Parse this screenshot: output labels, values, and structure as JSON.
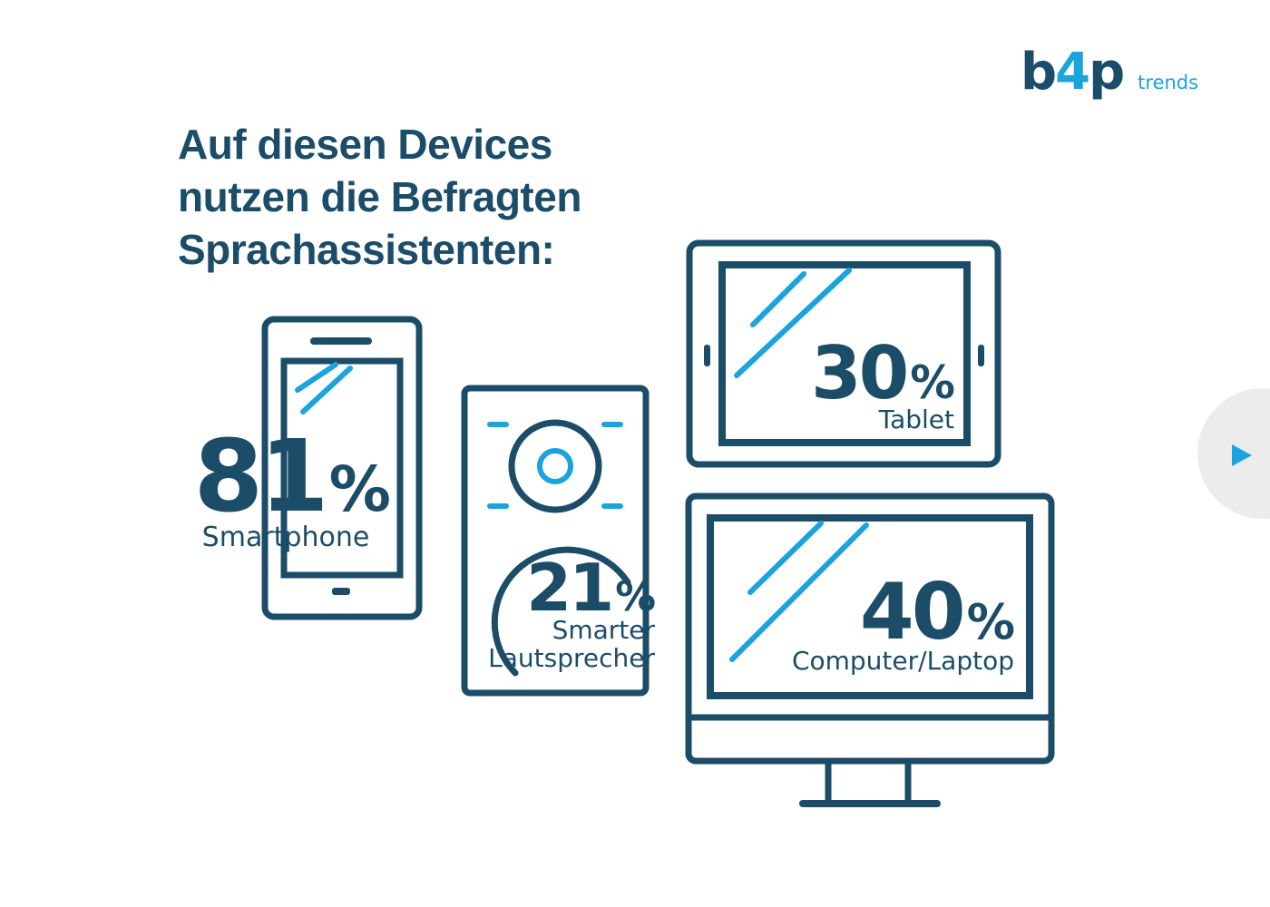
{
  "logo": {
    "text_main": "b",
    "text_four": "4",
    "text_p": "p",
    "text_sub": "trends"
  },
  "title_lines": [
    "Auf diesen Devices",
    "nutzen die Befragten",
    "Sprachassistenten:"
  ],
  "colors": {
    "dark": "#1b4c68",
    "accent": "#1aa3dd",
    "nav_bg": "#ececec"
  },
  "chart_data": {
    "type": "infographic",
    "unit": "%",
    "items": [
      {
        "label": "Smartphone",
        "value": 81,
        "value_text": "81",
        "icon": "smartphone-icon"
      },
      {
        "label": "Smarter Lautsprecher",
        "label_lines": [
          "Smarter",
          "Lautsprecher"
        ],
        "value": 21,
        "value_text": "21",
        "icon": "smart-speaker-icon"
      },
      {
        "label": "Tablet",
        "value": 30,
        "value_text": "30",
        "icon": "tablet-icon"
      },
      {
        "label": "Computer/Laptop",
        "value": 40,
        "value_text": "40",
        "icon": "monitor-icon"
      }
    ]
  },
  "nav": {
    "next_icon": "play-arrow-icon"
  }
}
